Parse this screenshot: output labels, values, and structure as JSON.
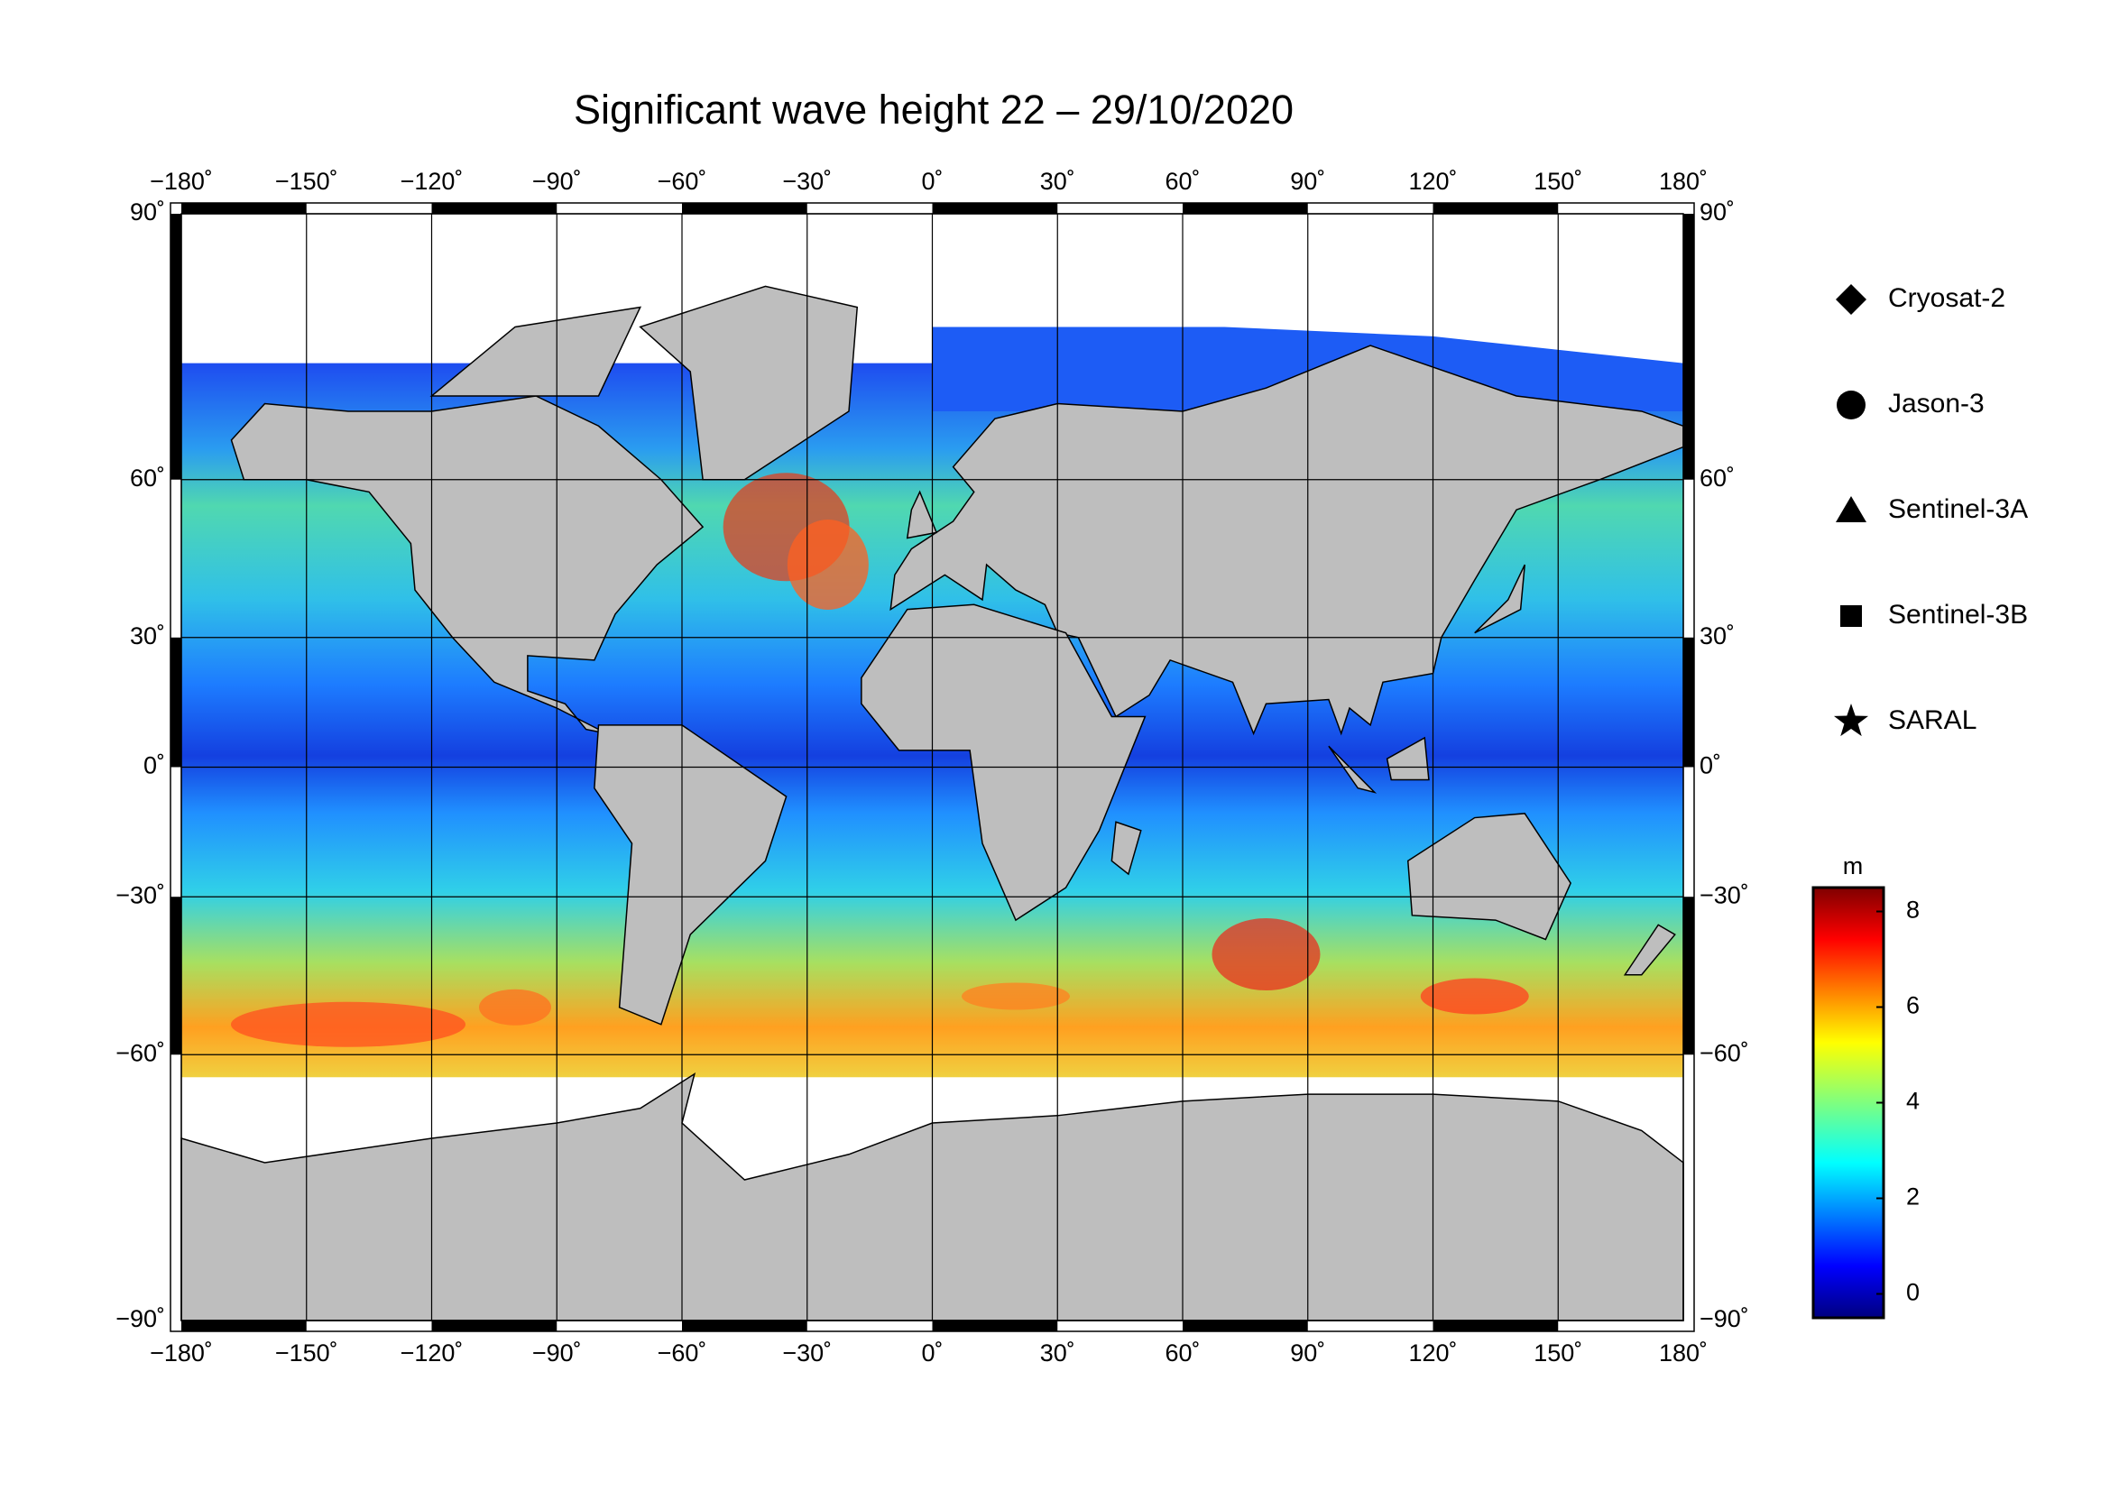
{
  "title": "Significant wave height 22 – 29/10/2020",
  "map": {
    "xlim": [
      -180,
      180
    ],
    "ylim": [
      -90,
      90
    ],
    "xticks": [
      {
        "value": -180,
        "label": "−180˚"
      },
      {
        "value": -150,
        "label": "−150˚"
      },
      {
        "value": -120,
        "label": "−120˚"
      },
      {
        "value": -90,
        "label": "−90˚"
      },
      {
        "value": -60,
        "label": "−60˚"
      },
      {
        "value": -30,
        "label": "−30˚"
      },
      {
        "value": 0,
        "label": "0˚"
      },
      {
        "value": 30,
        "label": "30˚"
      },
      {
        "value": 60,
        "label": "60˚"
      },
      {
        "value": 90,
        "label": "90˚"
      },
      {
        "value": 120,
        "label": "120˚"
      },
      {
        "value": 150,
        "label": "150˚"
      },
      {
        "value": 180,
        "label": "180˚"
      }
    ],
    "yticks": [
      {
        "value": 90,
        "label": "90˚"
      },
      {
        "value": 60,
        "label": "60˚"
      },
      {
        "value": 30,
        "label": "30˚"
      },
      {
        "value": 0,
        "label": "0˚"
      },
      {
        "value": -30,
        "label": "−30˚"
      },
      {
        "value": -60,
        "label": "−60˚"
      },
      {
        "value": -90,
        "label": "−90˚"
      }
    ],
    "legend": [
      {
        "name": "Cryosat-2",
        "marker": "diamond"
      },
      {
        "name": "Jason-3",
        "marker": "circle"
      },
      {
        "name": "Sentinel-3A",
        "marker": "triangle"
      },
      {
        "name": "Sentinel-3B",
        "marker": "square"
      },
      {
        "name": "SARAL",
        "marker": "star"
      }
    ],
    "colorbar": {
      "label": "m",
      "clim": [
        -0.5,
        8.5
      ],
      "ticks": [
        0,
        2,
        4,
        6,
        8
      ]
    }
  }
}
